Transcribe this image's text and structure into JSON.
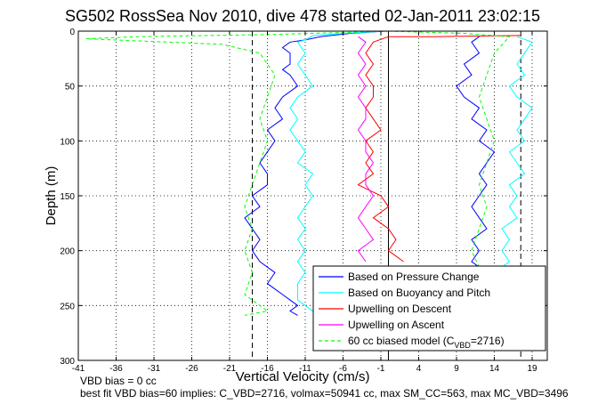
{
  "figure": {
    "title": "SG502 RossSea Nov 2010, dive 478 started 02-Jan-2011 23:02:15",
    "note_line1": "VBD bias = 0 cc",
    "note_line2": "best fit VBD bias=60 implies: C_VBD=2716, volmax=50941 cc, max SM_CC=563, max MC_VBD=3496"
  },
  "chart_data": {
    "type": "line",
    "title": "SG502 RossSea Nov 2010, dive 478 started 02-Jan-2011 23:02:15",
    "xlabel": "Vertical Velocity (cm/s)",
    "ylabel": "Depth (m)",
    "xlim": [
      -41,
      21
    ],
    "ylim": [
      300,
      0
    ],
    "y_reversed": true,
    "grid": true,
    "legend_position": "bottom-right",
    "xticks": [
      -41,
      -36,
      -31,
      -26,
      -21,
      -16,
      -11,
      -6,
      -1,
      4,
      9,
      14,
      19
    ],
    "yticks": [
      0,
      50,
      100,
      150,
      200,
      250,
      300
    ],
    "vlines": [
      {
        "x": -18,
        "style": "dashed",
        "color": "#000000"
      },
      {
        "x": 17.5,
        "style": "dashed",
        "color": "#000000"
      },
      {
        "x": 0,
        "style": "solid",
        "color": "#000000"
      }
    ],
    "series": [
      {
        "name": "Based on Pressure Change",
        "color": "#0000ff",
        "style": "solid",
        "segments": [
          {
            "x": [
              -0.5,
              -5,
              -9,
              -11,
              -13,
              -14,
              -13,
              -13,
              -14,
              -13,
              -12,
              -14,
              -15,
              -14,
              -16,
              -15,
              -16,
              -17,
              -16,
              -16,
              -18,
              -17,
              -19,
              -18,
              -17,
              -18,
              -17,
              -15,
              -16,
              -15,
              -14,
              -13,
              -12,
              -13,
              -12
            ],
            "y": [
              0,
              2,
              5,
              8,
              10,
              15,
              20,
              30,
              35,
              40,
              50,
              60,
              70,
              80,
              90,
              100,
              110,
              120,
              130,
              140,
              150,
              160,
              170,
              180,
              190,
              200,
              210,
              220,
              230,
              235,
              240,
              245,
              250,
              255,
              259
            ]
          },
          {
            "x": [
              12,
              11,
              12,
              10,
              11,
              9,
              10,
              12,
              11,
              13,
              12,
              14,
              13,
              12,
              13,
              12,
              11,
              12,
              13,
              11,
              12,
              11,
              12
            ],
            "y": [
              5,
              10,
              20,
              30,
              40,
              50,
              60,
              70,
              80,
              90,
              100,
              110,
              120,
              130,
              140,
              150,
              160,
              170,
              180,
              190,
              200,
              210,
              215
            ]
          }
        ]
      },
      {
        "name": "Based on Buoyancy and Pitch",
        "color": "#00ffff",
        "style": "solid",
        "segments": [
          {
            "x": [
              -0.5,
              -6,
              -10,
              -11,
              -12,
              -11,
              -12,
              -11,
              -10,
              -12,
              -13,
              -12,
              -13,
              -12,
              -11,
              -12,
              -10,
              -11,
              -10,
              -11,
              -12,
              -11,
              -12,
              -11,
              -12,
              -11,
              -12,
              -12,
              -10,
              -8
            ],
            "y": [
              0,
              2,
              4,
              8,
              10,
              20,
              30,
              40,
              50,
              60,
              70,
              80,
              90,
              100,
              110,
              120,
              130,
              140,
              150,
              160,
              170,
              180,
              190,
              200,
              210,
              220,
              230,
              245,
              255,
              260
            ]
          },
          {
            "x": [
              17,
              19,
              18,
              17,
              18,
              16,
              17,
              19,
              18,
              17,
              18,
              16,
              17,
              18,
              16,
              17,
              16,
              17,
              15,
              16,
              15,
              16,
              15
            ],
            "y": [
              5,
              10,
              20,
              30,
              40,
              50,
              60,
              70,
              80,
              90,
              100,
              110,
              120,
              130,
              140,
              150,
              160,
              170,
              180,
              190,
              200,
              210,
              215
            ]
          }
        ]
      },
      {
        "name": "Upwelling on Descent",
        "color": "#ff0000",
        "style": "solid",
        "segments": [
          {
            "x": [
              0,
              -2,
              -3,
              -2,
              -3,
              -2,
              -2,
              -3,
              -2,
              -1,
              -3,
              -2,
              -3,
              -2,
              -4,
              -1,
              0,
              -2,
              0,
              1,
              0,
              2
            ],
            "y": [
              5,
              10,
              20,
              30,
              40,
              50,
              60,
              70,
              80,
              90,
              100,
              110,
              120,
              130,
              140,
              150,
              160,
              170,
              180,
              190,
              200,
              210
            ]
          },
          {
            "x": [
              17.5,
              12,
              6,
              0
            ],
            "y": [
              4,
              4.5,
              5,
              5
            ]
          }
        ]
      },
      {
        "name": "Upwelling on Ascent",
        "color": "#ff00ff",
        "style": "solid",
        "segments": [
          {
            "x": [
              -4,
              -3,
              -4,
              -3,
              -4,
              -3,
              -4,
              -3,
              -3,
              -4,
              -3,
              -3,
              -2,
              -3,
              -3,
              -2,
              -3,
              -4,
              -3,
              -2,
              -4,
              -3
            ],
            "y": [
              5,
              10,
              20,
              30,
              40,
              50,
              60,
              70,
              80,
              90,
              100,
              110,
              120,
              130,
              140,
              150,
              160,
              170,
              180,
              190,
              200,
              210
            ]
          }
        ]
      },
      {
        "name": "60 cc biased model (C_VBD=2716)",
        "color": "#00ff00",
        "style": "dashed",
        "segments": [
          {
            "x": [
              0,
              -15,
              -33,
              -40,
              -22,
              -17,
              -15,
              -16,
              -17,
              -16,
              -17,
              -18,
              -19,
              -18,
              -19,
              -18,
              -19,
              -17,
              -16,
              -19
            ],
            "y": [
              0,
              3,
              5,
              7,
              12,
              20,
              40,
              60,
              80,
              100,
              120,
              140,
              160,
              180,
              200,
              220,
              240,
              250,
              255,
              259
            ]
          },
          {
            "x": [
              0,
              10,
              16,
              14,
              13,
              12,
              13,
              14,
              13,
              12,
              13,
              12,
              11,
              12
            ],
            "y": [
              0,
              2,
              5,
              20,
              40,
              60,
              80,
              100,
              120,
              140,
              160,
              180,
              200,
              215
            ]
          }
        ]
      }
    ]
  },
  "legend": {
    "items": [
      {
        "label": "Based on Pressure Change",
        "color": "#0000ff",
        "dashed": false
      },
      {
        "label": "Based on Buoyancy and Pitch",
        "color": "#00ffff",
        "dashed": false
      },
      {
        "label": "Upwelling on Descent",
        "color": "#ff0000",
        "dashed": false
      },
      {
        "label": "Upwelling on Ascent",
        "color": "#ff00ff",
        "dashed": false
      },
      {
        "label": "60 cc biased model (C",
        "color": "#00ff00",
        "dashed": true,
        "sub": "VBD",
        "suffix": "=2716)"
      }
    ]
  }
}
